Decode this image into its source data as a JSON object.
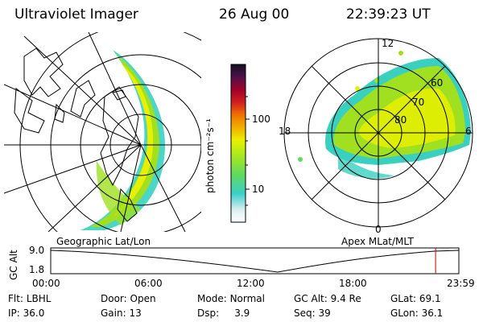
{
  "header": {
    "instrument": "Ultraviolet Imager",
    "date": "26 Aug 00",
    "time": "22:39:23 UT"
  },
  "colorbar": {
    "unit_label": "photon cm⁻²s⁻¹",
    "ticks": [
      "100",
      "10"
    ]
  },
  "left_map": {
    "caption": "Geographic Lat/Lon"
  },
  "right_map": {
    "caption": "Apex MLat/MLT",
    "mlt_labels": [
      "12",
      "18",
      "6",
      "0"
    ],
    "mlat_labels": [
      "60",
      "70",
      "80"
    ]
  },
  "altitude_plot": {
    "ylabel": "GC Alt",
    "yticks": [
      "9.0",
      "1.8"
    ],
    "xticks": [
      "00:00",
      "06:00",
      "12:00",
      "18:00",
      "23:59"
    ],
    "current_time_fraction": 0.943
  },
  "status": {
    "row1": [
      {
        "label": "Flt:",
        "value": "LBHL"
      },
      {
        "label": "Door:",
        "value": "Open"
      },
      {
        "label": "Mode:",
        "value": "Normal"
      },
      {
        "label": "GC Alt:",
        "value": "9.4 Re"
      },
      {
        "label": "GLat:",
        "value": "69.1"
      }
    ],
    "row2": [
      {
        "label": "IP:",
        "value": "36.0"
      },
      {
        "label": "Gain:",
        "value": "13"
      },
      {
        "label": "Dsp:",
        "value": "3.9"
      },
      {
        "label": "Seq:",
        "value": "39"
      },
      {
        "label": "GLon:",
        "value": "36.1"
      }
    ]
  },
  "colors": {
    "aurora_low": "#3ad0c0",
    "aurora_mid": "#a0e020",
    "aurora_high": "#e8f000",
    "marker": "#c00000"
  }
}
